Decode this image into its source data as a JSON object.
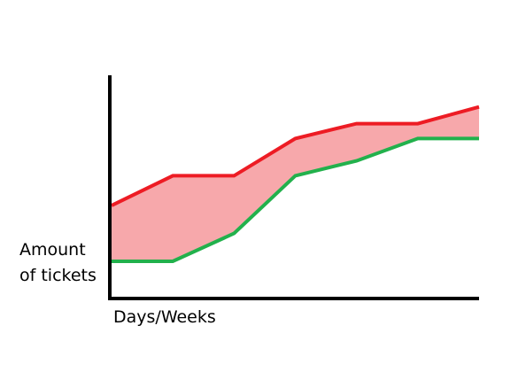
{
  "chart_data": {
    "type": "area",
    "x": [
      0,
      1,
      2,
      3,
      4,
      5,
      6
    ],
    "series": [
      {
        "values": [
          1.0,
          1.0,
          1.75,
          3.3,
          3.7,
          4.3,
          4.3
        ]
      },
      {
        "values": [
          2.5,
          3.3,
          3.3,
          4.3,
          4.7,
          4.7,
          5.15
        ]
      }
    ],
    "fill_between": true,
    "xlabel": "Days/Weeks",
    "ylabel_lines": [
      "Amount",
      "of tickets"
    ],
    "xlim": [
      0,
      6
    ],
    "ylim": [
      0,
      6
    ],
    "grid": false,
    "ticks": false,
    "colors": {
      "lower": "#22b14c",
      "upper": "#ed1c24",
      "band": "#f7a8ab",
      "axis": "#000000"
    }
  }
}
